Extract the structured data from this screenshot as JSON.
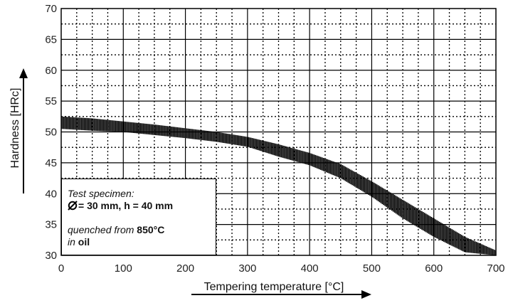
{
  "chart_data": {
    "type": "area",
    "title": "",
    "xlabel": "Tempering temperature [°C]",
    "ylabel": "Hardness [HRc]",
    "xlim": [
      0,
      700
    ],
    "ylim": [
      30,
      70
    ],
    "xticks": [
      0,
      100,
      200,
      300,
      400,
      500,
      600,
      700
    ],
    "yticks": [
      30,
      35,
      40,
      45,
      50,
      55,
      60,
      65,
      70
    ],
    "grid": true,
    "series": [
      {
        "x": [
          0,
          50,
          100,
          150,
          200,
          250,
          300,
          350,
          400,
          450,
          500,
          550,
          600,
          650,
          700
        ],
        "upper": [
          52.5,
          52.2,
          51.7,
          51.2,
          50.6,
          50.0,
          49.2,
          48.0,
          46.6,
          44.8,
          42.0,
          39.0,
          36.0,
          33.0,
          30.8
        ],
        "lower": [
          50.5,
          50.2,
          50.0,
          49.5,
          49.0,
          48.4,
          47.6,
          46.0,
          44.6,
          42.5,
          39.5,
          36.0,
          33.0,
          30.5,
          30.0
        ]
      }
    ]
  },
  "legend_box": {
    "line1": "Test specimen:",
    "line2": "= 30 mm, h = 40 mm",
    "line3_a": "quenched from",
    "line3_b": "850°C",
    "line4_a": "in",
    "line4_b": "oil"
  }
}
